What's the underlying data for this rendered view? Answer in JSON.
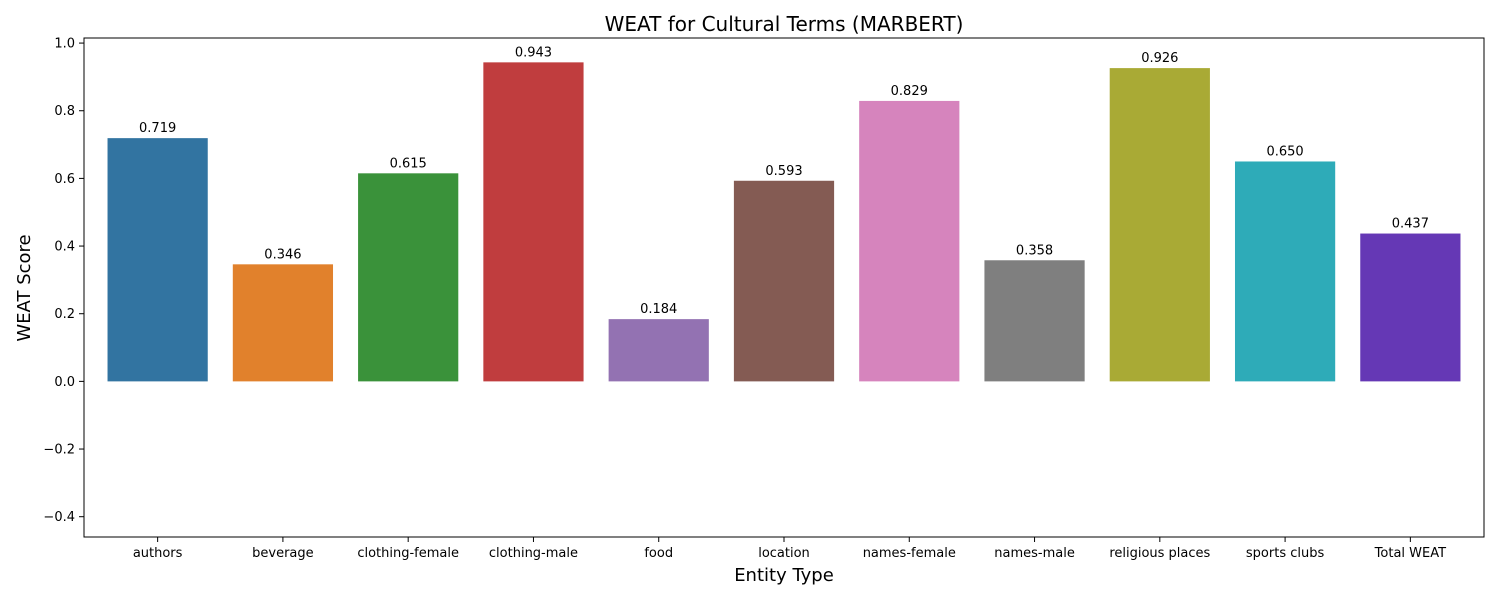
{
  "chart_data": {
    "type": "bar",
    "title": "WEAT for Cultural Terms (MARBERT)",
    "xlabel": "Entity Type",
    "ylabel": "WEAT Score",
    "categories": [
      "authors",
      "beverage",
      "clothing-female",
      "clothing-male",
      "food",
      "location",
      "names-female",
      "names-male",
      "religious places",
      "sports clubs",
      "Total WEAT"
    ],
    "values": [
      0.719,
      0.346,
      0.615,
      0.943,
      0.184,
      0.593,
      0.829,
      0.358,
      0.926,
      0.65,
      0.437
    ],
    "value_labels": [
      "0.719",
      "0.346",
      "0.615",
      "0.943",
      "0.184",
      "0.593",
      "0.829",
      "0.358",
      "0.926",
      "0.650",
      "0.437"
    ],
    "colors": [
      "#3274a1",
      "#e1812c",
      "#3a923a",
      "#c03d3e",
      "#9372b2",
      "#845b53",
      "#d684bd",
      "#7f7f7f",
      "#a9aa35",
      "#2eabb8",
      "#6538b5"
    ],
    "ylim": [
      -0.46,
      1.015
    ],
    "yticks": [
      -0.4,
      -0.2,
      0.0,
      0.2,
      0.4,
      0.6,
      0.8,
      1.0
    ],
    "ytick_labels": [
      "−0.4",
      "−0.2",
      "0.0",
      "0.2",
      "0.4",
      "0.6",
      "0.8",
      "1.0"
    ],
    "grid": false,
    "legend": "none"
  }
}
